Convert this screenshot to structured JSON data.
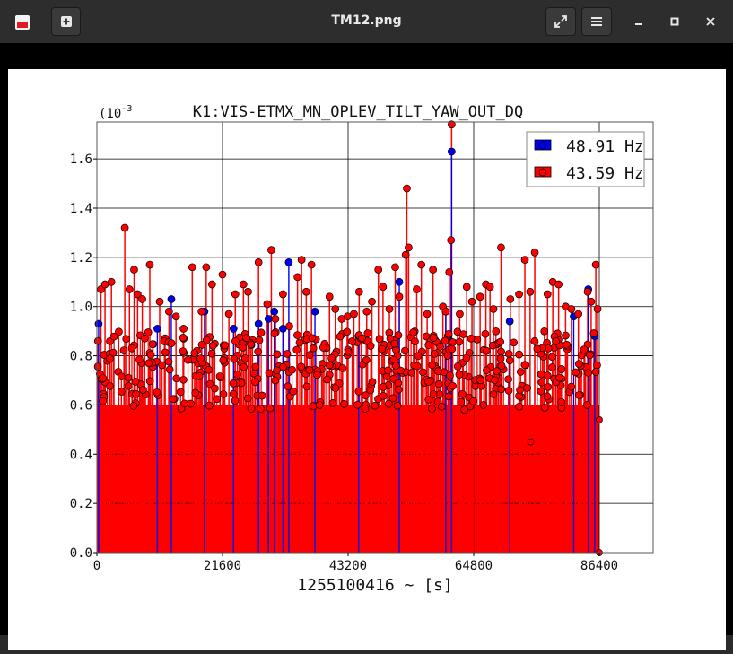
{
  "window": {
    "title": "TM12.png",
    "app_icon": "image-viewer-icon",
    "buttons": {
      "new_window": "plus-box-icon",
      "fullscreen": "expand-arrows-icon",
      "menu": "hamburger-menu-icon",
      "minimize": "minimize-icon",
      "maximize": "maximize-icon",
      "close": "close-icon"
    }
  },
  "colors": {
    "series_48": "#0000ee",
    "series_43": "#ff0000",
    "background": "#ffffff"
  },
  "chart_data": {
    "type": "scatter",
    "title": "K1:VIS-ETMX_MN_OPLEV_TILT_YAW_OUT_DQ",
    "xlabel": "1255100416 ~ [s]",
    "ylabel": "",
    "y_multiplier": "(10^-3",
    "y_multiplier_base": "(10",
    "y_multiplier_exp": "-3",
    "xlim": [
      0,
      86400
    ],
    "ylim": [
      0.0,
      1.75
    ],
    "x_ticks": [
      "0",
      "21600",
      "43200",
      "64800",
      "86400"
    ],
    "y_ticks": [
      "0.0",
      "0.2",
      "0.4",
      "0.6",
      "0.8",
      "1.0",
      "1.2",
      "1.4",
      "1.6"
    ],
    "grid": true,
    "legend_position": "top-right",
    "drawstyle": "stem",
    "series": [
      {
        "name": "48.91 Hz",
        "color": "#0000ee",
        "points": [
          [
            300,
            0.93
          ],
          [
            10400,
            0.91
          ],
          [
            12800,
            1.03
          ],
          [
            18500,
            0.98
          ],
          [
            23500,
            0.91
          ],
          [
            27800,
            0.93
          ],
          [
            29500,
            0.95
          ],
          [
            30500,
            0.98
          ],
          [
            32000,
            0.91
          ],
          [
            33000,
            1.18
          ],
          [
            37500,
            0.98
          ],
          [
            45000,
            0.88
          ],
          [
            52000,
            1.1
          ],
          [
            60000,
            0.98
          ],
          [
            61000,
            1.63
          ],
          [
            71000,
            0.94
          ],
          [
            82000,
            0.96
          ],
          [
            84500,
            1.07
          ],
          [
            85600,
            0.88
          ]
        ]
      },
      {
        "name": "43.59 Hz",
        "color": "#ff0000",
        "peaks": [
          [
            200,
            0.86
          ],
          [
            700,
            1.07
          ],
          [
            1400,
            1.09
          ],
          [
            2500,
            1.1
          ],
          [
            4800,
            1.32
          ],
          [
            5600,
            1.07
          ],
          [
            6400,
            1.15
          ],
          [
            7000,
            1.05
          ],
          [
            7800,
            1.03
          ],
          [
            9100,
            1.17
          ],
          [
            10800,
            1.02
          ],
          [
            12400,
            0.98
          ],
          [
            13600,
            0.96
          ],
          [
            14900,
            0.91
          ],
          [
            16400,
            1.16
          ],
          [
            18000,
            0.98
          ],
          [
            18800,
            1.16
          ],
          [
            19800,
            1.09
          ],
          [
            21600,
            1.13
          ],
          [
            22700,
            0.97
          ],
          [
            23800,
            1.05
          ],
          [
            25200,
            1.09
          ],
          [
            26000,
            1.06
          ],
          [
            27800,
            1.18
          ],
          [
            29300,
            1.01
          ],
          [
            30000,
            1.23
          ],
          [
            30700,
            0.95
          ],
          [
            32000,
            1.05
          ],
          [
            33100,
            0.92
          ],
          [
            34500,
            1.12
          ],
          [
            35200,
            1.19
          ],
          [
            36000,
            1.06
          ],
          [
            36900,
            1.17
          ],
          [
            40000,
            1.04
          ],
          [
            41000,
            0.99
          ],
          [
            42100,
            0.95
          ],
          [
            43100,
            0.96
          ],
          [
            44200,
            0.97
          ],
          [
            45100,
            1.06
          ],
          [
            46400,
            0.98
          ],
          [
            47300,
            1.02
          ],
          [
            48400,
            1.15
          ],
          [
            49200,
            1.08
          ],
          [
            50300,
            0.99
          ],
          [
            51300,
            1.16
          ],
          [
            52000,
            1.04
          ],
          [
            53100,
            1.21
          ],
          [
            53300,
            1.48
          ],
          [
            53600,
            1.24
          ],
          [
            55000,
            1.07
          ],
          [
            55800,
            1.17
          ],
          [
            56800,
            0.97
          ],
          [
            57800,
            1.15
          ],
          [
            59500,
            1.0
          ],
          [
            60000,
            0.98
          ],
          [
            60600,
            1.14
          ],
          [
            60900,
            1.27
          ],
          [
            61000,
            1.74
          ],
          [
            62400,
            0.97
          ],
          [
            63600,
            1.08
          ],
          [
            64500,
            1.02
          ],
          [
            65900,
            1.04
          ],
          [
            66900,
            1.09
          ],
          [
            67600,
            1.08
          ],
          [
            68200,
            0.99
          ],
          [
            69500,
            1.24
          ],
          [
            71100,
            1.03
          ],
          [
            72600,
            1.05
          ],
          [
            73600,
            1.19
          ],
          [
            74500,
            1.06
          ],
          [
            75300,
            1.22
          ],
          [
            77500,
            1.05
          ],
          [
            78400,
            1.1
          ],
          [
            79400,
            1.09
          ],
          [
            80600,
            1.0
          ],
          [
            81600,
            0.99
          ],
          [
            82800,
            0.97
          ],
          [
            84400,
            1.06
          ],
          [
            85000,
            1.02
          ],
          [
            85800,
            1.17
          ],
          [
            86100,
            0.99
          ]
        ],
        "typical_range": [
          0.5,
          0.9
        ],
        "outliers_low": [
          [
            74600,
            0.45
          ],
          [
            86400,
            0.54
          ],
          [
            86400,
            0.0
          ]
        ]
      }
    ]
  }
}
